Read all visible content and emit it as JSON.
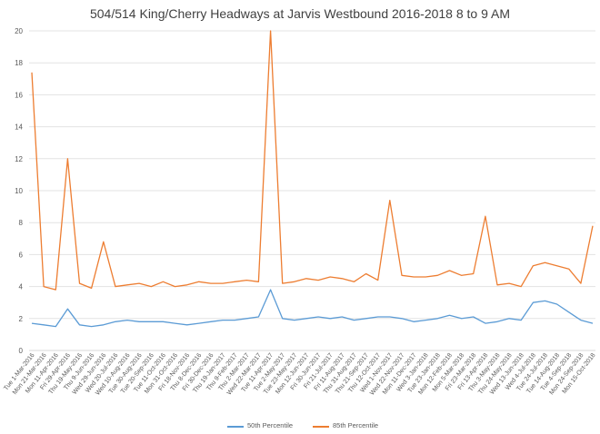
{
  "chart_data": {
    "type": "line",
    "title": "504/514 King/Cherry Headways at Jarvis Westbound 2016-2018 8 to 9 AM",
    "xlabel": "",
    "ylabel": "",
    "ylim": [
      0,
      20
    ],
    "yticks": [
      "0",
      "2",
      "4",
      "6",
      "8",
      "10",
      "12",
      "14",
      "16",
      "18",
      "20"
    ],
    "grid": true,
    "legend_position": "bottom",
    "categories": [
      "Tue 1-Mar-2016",
      "Mon 21-Mar-2016",
      "Mon 11-Apr-2016",
      "Fri 29-Apr-2016",
      "Thu 19-May-2016",
      "Thu 9-Jun-2016",
      "Wed 29-Jun-2016",
      "Wed 20-Jul-2016",
      "Wed 10-Aug-2016",
      "Tue 30-Aug-2016",
      "Tue 20-Sep-2016",
      "Tue 11-Oct-2016",
      "Mon 31-Oct-2016",
      "Fri 18-Nov-2016",
      "Thu 8-Dec-2016",
      "Fri 30-Dec-2016",
      "Thu 19-Jan-2017",
      "Thu 9-Feb-2017",
      "Thu 2-Mar-2017",
      "Wed 22-Mar-2017",
      "Tue 11-Apr-2017",
      "Tue 2-May-2017",
      "Tue 23-May-2017",
      "Mon 12-Jun-2017",
      "Fri 30-Jun-2017",
      "Fri 21-Jul-2017",
      "Fri 11-Aug-2017",
      "Thu 31-Aug-2017",
      "Thu 21-Sep-2017",
      "Thu 12-Oct-2017",
      "Wed 1-Nov-2017",
      "Wed 22-Nov-2017",
      "Mon 11-Dec-2017",
      "Wed 3-Jan-2018",
      "Tue 23-Jan-2018",
      "Mon 12-Feb-2018",
      "Mon 5-Mar-2018",
      "Fri 23-Mar-2018",
      "Fri 13-Apr-2018",
      "Thu 3-May-2018",
      "Thu 24-May-2018",
      "Wed 13-Jun-2018",
      "Wed 4-Jul-2018",
      "Tue 24-Jul-2018",
      "Tue 14-Aug-2018",
      "Tue 4-Sep-2018",
      "Mon 24-Sep-2018",
      "Mon 15-Oct-2018"
    ],
    "series": [
      {
        "name": "50th Percentile",
        "color": "#5B9BD5",
        "values": [
          1.7,
          1.6,
          1.5,
          2.6,
          1.6,
          1.5,
          1.6,
          1.8,
          1.9,
          1.8,
          1.8,
          1.8,
          1.7,
          1.6,
          1.7,
          1.8,
          1.9,
          1.9,
          2.0,
          2.1,
          3.8,
          2.0,
          1.9,
          2.0,
          2.1,
          2.0,
          2.1,
          1.9,
          2.0,
          2.1,
          2.1,
          2.0,
          1.8,
          1.9,
          2.0,
          2.2,
          2.0,
          2.1,
          1.7,
          1.8,
          2.0,
          1.9,
          3.0,
          3.1,
          2.9,
          2.4,
          1.9,
          1.7
        ]
      },
      {
        "name": "85th Percentile",
        "color": "#ED7D31",
        "values": [
          17.4,
          4.0,
          3.8,
          12.0,
          4.2,
          3.9,
          6.8,
          4.0,
          4.1,
          4.2,
          4.0,
          4.3,
          4.0,
          4.1,
          4.3,
          4.2,
          4.2,
          4.3,
          4.4,
          4.3,
          20.0,
          4.2,
          4.3,
          4.5,
          4.4,
          4.6,
          4.5,
          4.3,
          4.8,
          4.4,
          9.4,
          4.7,
          4.6,
          4.6,
          4.7,
          5.0,
          4.7,
          4.8,
          8.4,
          4.1,
          4.2,
          4.0,
          5.3,
          5.5,
          5.3,
          5.1,
          4.2,
          7.8
        ]
      }
    ]
  }
}
